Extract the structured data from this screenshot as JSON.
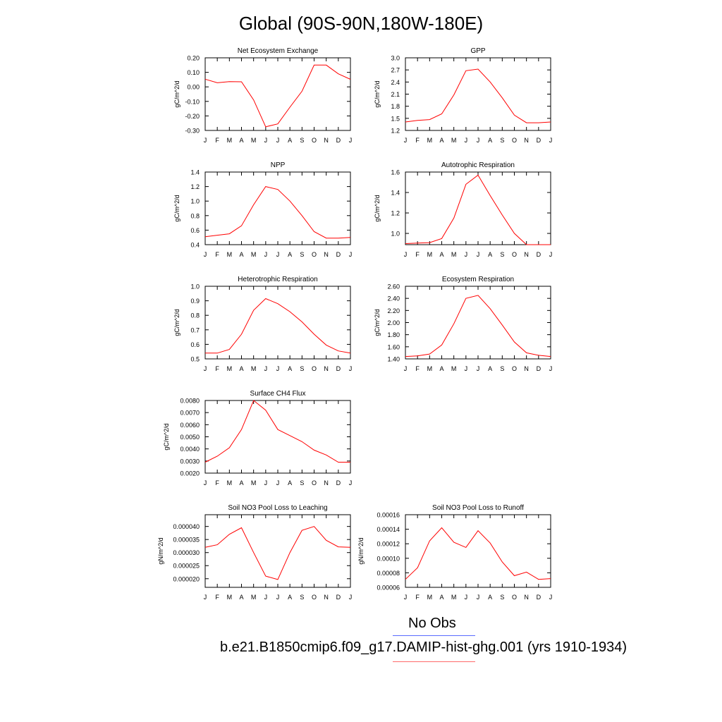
{
  "title": "Global (90S-90N,180W-180E)",
  "months": [
    "J",
    "F",
    "M",
    "A",
    "M",
    "J",
    "J",
    "A",
    "S",
    "O",
    "N",
    "D",
    "J"
  ],
  "colors": {
    "series": "#ff0000",
    "obs": "#5a6cff",
    "axis": "#000000"
  },
  "legend": {
    "obs_label": "No Obs",
    "case_label": "b.e21.B1850cmip6.f09_g17.DAMIP-hist-ghg.001 (yrs 1910-1934)"
  },
  "chart_data": [
    {
      "type": "line",
      "title": "Net Ecosystem Exchange",
      "ylabel": "gC/m^2/d",
      "ylim": [
        -0.3,
        0.2
      ],
      "yticks": [
        0.2,
        0.1,
        0.0,
        -0.1,
        -0.2,
        -0.3
      ],
      "ytick_labels": [
        "0.20",
        "0.10",
        "0.00",
        "-0.10",
        "-0.20",
        "-0.30"
      ],
      "values": [
        0.053,
        0.028,
        0.036,
        0.035,
        -0.09,
        -0.275,
        -0.255,
        -0.14,
        -0.03,
        0.15,
        0.15,
        0.09,
        0.052
      ]
    },
    {
      "type": "line",
      "title": "GPP",
      "ylabel": "gC/m^2/d",
      "ylim": [
        1.2,
        3.0
      ],
      "yticks": [
        3.0,
        2.7,
        2.4,
        2.1,
        1.8,
        1.5,
        1.2
      ],
      "ytick_labels": [
        "3.0",
        "2.7",
        "2.4",
        "2.1",
        "1.8",
        "1.5",
        "1.2"
      ],
      "values": [
        1.41,
        1.45,
        1.47,
        1.61,
        2.08,
        2.68,
        2.72,
        2.4,
        2.01,
        1.58,
        1.39,
        1.39,
        1.41
      ]
    },
    {
      "type": "line",
      "title": "NPP",
      "ylabel": "gC/m^2/d",
      "ylim": [
        0.4,
        1.4
      ],
      "yticks": [
        1.4,
        1.2,
        1.0,
        0.8,
        0.6,
        0.4
      ],
      "ytick_labels": [
        "1.4",
        "1.2",
        "1.0",
        "0.8",
        "0.6",
        "0.4"
      ],
      "values": [
        0.51,
        0.53,
        0.55,
        0.66,
        0.95,
        1.2,
        1.16,
        1.0,
        0.8,
        0.58,
        0.49,
        0.49,
        0.5
      ]
    },
    {
      "type": "line",
      "title": "Autotrophic Respiration",
      "ylabel": "gC/m^2/d",
      "ylim": [
        0.89,
        1.6
      ],
      "yticks": [
        1.6,
        1.4,
        1.2,
        1.0
      ],
      "ytick_labels": [
        "1.6",
        "1.4",
        "1.2",
        "1.0"
      ],
      "values": [
        0.9,
        0.905,
        0.91,
        0.95,
        1.15,
        1.48,
        1.57,
        1.37,
        1.18,
        1.0,
        0.89,
        0.89,
        0.89
      ]
    },
    {
      "type": "line",
      "title": "Heterotrophic Respiration",
      "ylabel": "gC/m^2/d",
      "ylim": [
        0.5,
        1.0
      ],
      "yticks": [
        1.0,
        0.9,
        0.8,
        0.7,
        0.6,
        0.5
      ],
      "ytick_labels": [
        "1.0",
        "0.9",
        "0.8",
        "0.7",
        "0.6",
        "0.5"
      ],
      "values": [
        0.54,
        0.54,
        0.565,
        0.67,
        0.835,
        0.915,
        0.88,
        0.825,
        0.755,
        0.67,
        0.595,
        0.555,
        0.54
      ]
    },
    {
      "type": "line",
      "title": "Ecosystem Respiration",
      "ylabel": "gC/m^2/d",
      "ylim": [
        1.4,
        2.6
      ],
      "yticks": [
        2.6,
        2.4,
        2.2,
        2.0,
        1.8,
        1.6,
        1.4
      ],
      "ytick_labels": [
        "2.60",
        "2.40",
        "2.20",
        "2.00",
        "1.80",
        "1.60",
        "1.40"
      ],
      "values": [
        1.44,
        1.45,
        1.48,
        1.63,
        1.98,
        2.4,
        2.45,
        2.23,
        1.96,
        1.68,
        1.5,
        1.46,
        1.44
      ]
    },
    {
      "type": "line",
      "title": "Surface CH4 Flux",
      "ylabel": "gC/m^2/d",
      "ylim": [
        0.002,
        0.008
      ],
      "yticks": [
        0.008,
        0.007,
        0.006,
        0.005,
        0.004,
        0.003,
        0.002
      ],
      "ytick_labels": [
        "0.0080",
        "0.0070",
        "0.0060",
        "0.0050",
        "0.0040",
        "0.0030",
        "0.0020"
      ],
      "values": [
        0.0029,
        0.0034,
        0.0041,
        0.0056,
        0.008,
        0.0072,
        0.0056,
        0.0051,
        0.0046,
        0.0039,
        0.0035,
        0.0029,
        0.0029
      ]
    },
    {
      "type": "line",
      "title": "Soil NO3 Pool Loss to Leaching",
      "ylabel": "gN/m^2/d",
      "ylim": [
        1.67e-05,
        4.45e-05
      ],
      "yticks": [
        4e-05,
        3.5e-05,
        3e-05,
        2.5e-05,
        2e-05
      ],
      "ytick_labels": [
        "0.000040",
        "0.000035",
        "0.000030",
        "0.000025",
        "0.000020"
      ],
      "values": [
        3.2e-05,
        3.3e-05,
        3.7e-05,
        3.95e-05,
        3e-05,
        2.1e-05,
        1.97e-05,
        3e-05,
        3.85e-05,
        4e-05,
        3.47e-05,
        3.22e-05,
        3.2e-05
      ]
    },
    {
      "type": "line",
      "title": "Soil NO3 Pool Loss to Runoff",
      "ylabel": "gN/m^2/d",
      "ylim": [
        6e-05,
        0.00016
      ],
      "yticks": [
        0.00016,
        0.00014,
        0.00012,
        0.0001,
        8e-05,
        6e-05
      ],
      "ytick_labels": [
        "0.00016",
        "0.00014",
        "0.00012",
        "0.00010",
        "0.00008",
        "0.00006"
      ],
      "values": [
        7.1e-05,
        8.7e-05,
        0.000124,
        0.000142,
        0.000122,
        0.000115,
        0.000138,
        0.000121,
        9.5e-05,
        7.6e-05,
        8.1e-05,
        7.1e-05,
        7.2e-05
      ]
    }
  ]
}
